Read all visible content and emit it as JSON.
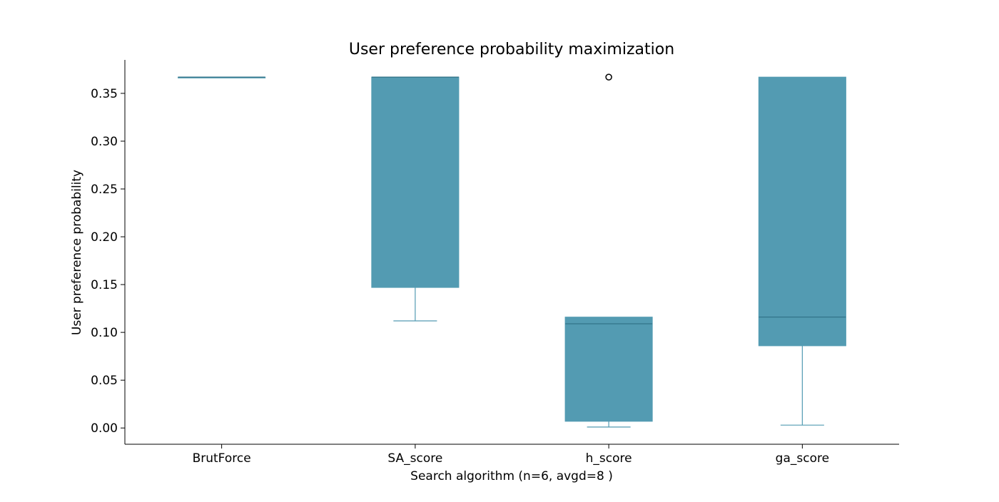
{
  "chart_data": {
    "type": "box",
    "title": "User preference probability maximization",
    "xlabel": "Search algorithm (n=6, avgd=8 )",
    "ylabel": "User preference probability",
    "ylim": [
      -0.017,
      0.385
    ],
    "yticks": [
      "0.00",
      "0.05",
      "0.10",
      "0.15",
      "0.20",
      "0.25",
      "0.30",
      "0.35"
    ],
    "grid": false,
    "box_color": "#539bb2",
    "median_color": "#2e6f84",
    "categories": [
      "BrutForce",
      "SA_score",
      "h_score",
      "ga_score"
    ],
    "boxes": [
      {
        "category": "BrutForce",
        "whisker_low": 0.367,
        "q1": 0.367,
        "median": 0.367,
        "q3": 0.367,
        "whisker_high": 0.367,
        "outliers": []
      },
      {
        "category": "SA_score",
        "whisker_low": 0.112,
        "q1": 0.147,
        "median": 0.367,
        "q3": 0.367,
        "whisker_high": 0.367,
        "outliers": []
      },
      {
        "category": "h_score",
        "whisker_low": 0.001,
        "q1": 0.007,
        "median": 0.109,
        "q3": 0.116,
        "whisker_high": 0.116,
        "outliers": [
          0.367
        ]
      },
      {
        "category": "ga_score",
        "whisker_low": 0.003,
        "q1": 0.086,
        "median": 0.116,
        "q3": 0.367,
        "whisker_high": 0.367,
        "outliers": []
      }
    ]
  }
}
